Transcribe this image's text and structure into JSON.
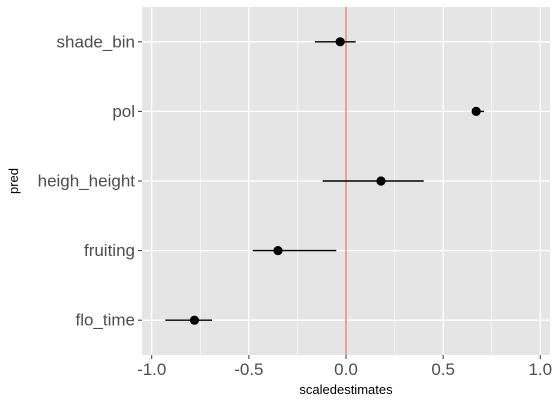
{
  "chart_data": {
    "type": "scatter",
    "subtype": "coefficient-plot-with-error-bars",
    "xlabel": "scaledestimates",
    "ylabel": "pred",
    "xlim": [
      -1.05,
      1.05
    ],
    "x_ticks": [
      -1.0,
      -0.5,
      0.0,
      0.5,
      1.0
    ],
    "x_tick_labels": [
      "-1.0",
      "-0.5",
      "0.0",
      "0.5",
      "1.0"
    ],
    "categories": [
      "shade_bin",
      "pol",
      "heigh_height",
      "fruiting",
      "flo_time"
    ],
    "points": [
      {
        "pred": "shade_bin",
        "estimate": -0.03,
        "low": -0.16,
        "high": 0.05
      },
      {
        "pred": "pol",
        "estimate": 0.67,
        "low": 0.66,
        "high": 0.71
      },
      {
        "pred": "heigh_height",
        "estimate": 0.18,
        "low": -0.12,
        "high": 0.4
      },
      {
        "pred": "fruiting",
        "estimate": -0.35,
        "low": -0.48,
        "high": -0.05
      },
      {
        "pred": "flo_time",
        "estimate": -0.78,
        "low": -0.93,
        "high": -0.69
      }
    ],
    "reference_line": {
      "x": 0,
      "color": "#e8705f"
    },
    "grid": true,
    "panel_background": "#e5e5e5",
    "grid_color": "#ffffff",
    "point_color": "#000000"
  }
}
